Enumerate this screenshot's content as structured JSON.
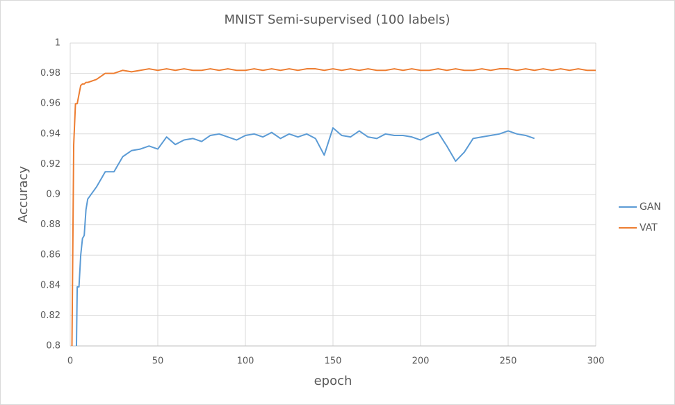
{
  "chart_data": {
    "type": "line",
    "title": "MNIST Semi-supervised (100 labels)",
    "x_label": "epoch",
    "y_label": "Accuracy",
    "x": [
      1,
      2,
      3,
      4,
      5,
      6,
      7,
      8,
      9,
      10,
      15,
      20,
      25,
      30,
      35,
      40,
      45,
      50,
      55,
      60,
      65,
      70,
      75,
      80,
      85,
      90,
      95,
      100,
      105,
      110,
      115,
      120,
      125,
      130,
      135,
      140,
      145,
      150,
      155,
      160,
      165,
      170,
      175,
      180,
      185,
      190,
      195,
      200,
      205,
      210,
      215,
      220,
      225,
      230,
      235,
      240,
      245,
      250,
      255,
      260,
      265,
      270,
      275,
      280,
      285,
      290,
      295,
      300
    ],
    "series": [
      {
        "name": "GAN",
        "color": "#5b9bd5",
        "values": [
          null,
          null,
          0.75,
          0.839,
          0.839,
          0.86,
          0.871,
          0.873,
          0.89,
          0.897,
          0.905,
          0.915,
          0.915,
          0.925,
          0.929,
          0.93,
          0.932,
          0.93,
          0.938,
          0.933,
          0.936,
          0.937,
          0.935,
          0.939,
          0.94,
          0.938,
          0.936,
          0.939,
          0.94,
          0.938,
          0.941,
          0.937,
          0.94,
          0.938,
          0.94,
          0.937,
          0.926,
          0.944,
          0.939,
          0.938,
          0.942,
          0.938,
          0.937,
          0.94,
          0.939,
          0.939,
          0.938,
          0.936,
          0.939,
          0.941,
          0.932,
          0.922,
          0.928,
          0.937,
          0.938,
          0.939,
          0.94,
          0.942,
          0.94,
          0.939,
          0.937,
          null,
          null,
          null,
          null,
          null,
          null,
          null
        ]
      },
      {
        "name": "VAT",
        "color": "#ed7d31",
        "values": [
          0.8,
          0.933,
          0.96,
          0.96,
          0.966,
          0.972,
          0.973,
          0.973,
          0.974,
          0.974,
          0.976,
          0.98,
          0.98,
          0.982,
          0.981,
          0.982,
          0.983,
          0.982,
          0.983,
          0.982,
          0.983,
          0.982,
          0.982,
          0.983,
          0.982,
          0.983,
          0.982,
          0.982,
          0.983,
          0.982,
          0.983,
          0.982,
          0.983,
          0.982,
          0.983,
          0.983,
          0.982,
          0.983,
          0.982,
          0.983,
          0.982,
          0.983,
          0.982,
          0.982,
          0.983,
          0.982,
          0.983,
          0.982,
          0.982,
          0.983,
          0.982,
          0.983,
          0.982,
          0.982,
          0.983,
          0.982,
          0.983,
          0.983,
          0.982,
          0.983,
          0.982,
          0.983,
          0.982,
          0.983,
          0.982,
          0.983,
          0.982,
          0.982
        ]
      }
    ],
    "xlim": [
      0,
      300
    ],
    "xticks": [
      0,
      50,
      100,
      150,
      200,
      250,
      300
    ],
    "ylim": [
      0.8,
      1
    ],
    "yticks": [
      0.8,
      0.82,
      0.84,
      0.86,
      0.88,
      0.9,
      0.92,
      0.94,
      0.96,
      0.98,
      1
    ],
    "grid": true,
    "legend": "right"
  }
}
